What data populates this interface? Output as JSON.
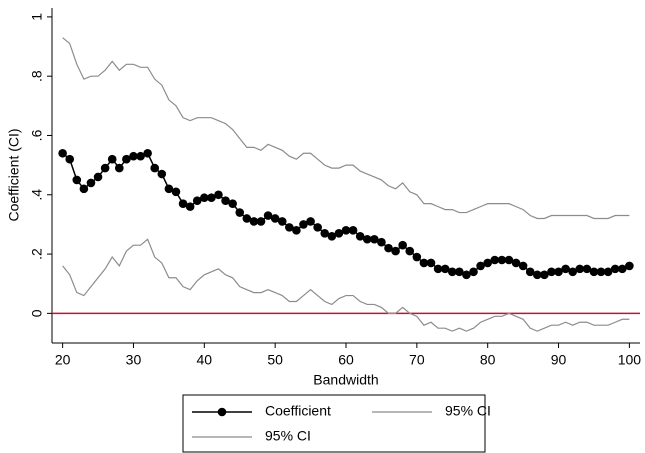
{
  "chart_data": {
    "type": "line",
    "x_label": "Bandwidth",
    "y_label": "Coefficient (CI)",
    "x": [
      20,
      21,
      22,
      23,
      24,
      25,
      26,
      27,
      28,
      29,
      30,
      31,
      32,
      33,
      34,
      35,
      36,
      37,
      38,
      39,
      40,
      41,
      42,
      43,
      44,
      45,
      46,
      47,
      48,
      49,
      50,
      51,
      52,
      53,
      54,
      55,
      56,
      57,
      58,
      59,
      60,
      61,
      62,
      63,
      64,
      65,
      66,
      67,
      68,
      69,
      70,
      71,
      72,
      73,
      74,
      75,
      76,
      77,
      78,
      79,
      80,
      81,
      82,
      83,
      84,
      85,
      86,
      87,
      88,
      89,
      90,
      91,
      92,
      93,
      94,
      95,
      96,
      97,
      98,
      99,
      100
    ],
    "series": [
      {
        "name": "Coefficient",
        "color": "#000000",
        "marker": true,
        "values": [
          0.54,
          0.52,
          0.45,
          0.42,
          0.44,
          0.46,
          0.49,
          0.52,
          0.49,
          0.52,
          0.53,
          0.53,
          0.54,
          0.49,
          0.47,
          0.42,
          0.41,
          0.37,
          0.36,
          0.38,
          0.39,
          0.39,
          0.4,
          0.38,
          0.37,
          0.34,
          0.32,
          0.31,
          0.31,
          0.33,
          0.32,
          0.31,
          0.29,
          0.28,
          0.3,
          0.31,
          0.29,
          0.27,
          0.26,
          0.27,
          0.28,
          0.28,
          0.26,
          0.25,
          0.25,
          0.24,
          0.22,
          0.21,
          0.23,
          0.21,
          0.19,
          0.17,
          0.17,
          0.15,
          0.15,
          0.14,
          0.14,
          0.13,
          0.14,
          0.16,
          0.17,
          0.18,
          0.18,
          0.18,
          0.17,
          0.16,
          0.14,
          0.13,
          0.13,
          0.14,
          0.14,
          0.15,
          0.14,
          0.15,
          0.15,
          0.14,
          0.14,
          0.14,
          0.15,
          0.15,
          0.16
        ]
      },
      {
        "name": "95% CI",
        "color": "#8c8c8c",
        "marker": false,
        "values": [
          0.93,
          0.91,
          0.84,
          0.79,
          0.8,
          0.8,
          0.82,
          0.85,
          0.82,
          0.84,
          0.84,
          0.83,
          0.83,
          0.79,
          0.77,
          0.72,
          0.7,
          0.66,
          0.65,
          0.66,
          0.66,
          0.66,
          0.65,
          0.64,
          0.62,
          0.59,
          0.56,
          0.56,
          0.55,
          0.57,
          0.56,
          0.55,
          0.53,
          0.52,
          0.54,
          0.54,
          0.52,
          0.5,
          0.49,
          0.49,
          0.5,
          0.5,
          0.48,
          0.47,
          0.46,
          0.45,
          0.43,
          0.42,
          0.44,
          0.41,
          0.4,
          0.37,
          0.37,
          0.36,
          0.35,
          0.35,
          0.34,
          0.34,
          0.35,
          0.36,
          0.37,
          0.37,
          0.37,
          0.37,
          0.36,
          0.35,
          0.33,
          0.32,
          0.32,
          0.33,
          0.33,
          0.33,
          0.33,
          0.33,
          0.33,
          0.32,
          0.32,
          0.32,
          0.33,
          0.33,
          0.33
        ]
      },
      {
        "name": "95% CI",
        "color": "#8c8c8c",
        "marker": false,
        "values": [
          0.16,
          0.13,
          0.07,
          0.06,
          0.09,
          0.12,
          0.15,
          0.19,
          0.16,
          0.21,
          0.23,
          0.23,
          0.25,
          0.19,
          0.17,
          0.12,
          0.12,
          0.09,
          0.08,
          0.11,
          0.13,
          0.14,
          0.15,
          0.13,
          0.12,
          0.09,
          0.08,
          0.07,
          0.07,
          0.08,
          0.07,
          0.06,
          0.04,
          0.04,
          0.06,
          0.08,
          0.06,
          0.04,
          0.03,
          0.05,
          0.06,
          0.06,
          0.04,
          0.03,
          0.03,
          0.02,
          0.0,
          0.0,
          0.02,
          0.0,
          -0.01,
          -0.04,
          -0.03,
          -0.05,
          -0.05,
          -0.06,
          -0.05,
          -0.06,
          -0.05,
          -0.03,
          -0.02,
          -0.01,
          -0.01,
          0.0,
          -0.01,
          -0.02,
          -0.05,
          -0.06,
          -0.05,
          -0.04,
          -0.04,
          -0.03,
          -0.04,
          -0.03,
          -0.03,
          -0.04,
          -0.04,
          -0.04,
          -0.03,
          -0.02,
          -0.02
        ]
      }
    ],
    "xlim": [
      18.5,
      101.5
    ],
    "ylim": [
      -0.1,
      1.03
    ],
    "xticks": [
      20,
      30,
      40,
      50,
      60,
      70,
      80,
      90,
      100
    ],
    "yticks": [
      0,
      {
        "value": 0.2,
        "label": ".2"
      },
      {
        "value": 0.4,
        "label": ".4"
      },
      {
        "value": 0.6,
        "label": ".6"
      },
      {
        "value": 0.8,
        "label": ".8"
      },
      1
    ],
    "reference_line": {
      "value": 0,
      "color": "#c8102e"
    },
    "grid": false,
    "legend": "bottom"
  }
}
